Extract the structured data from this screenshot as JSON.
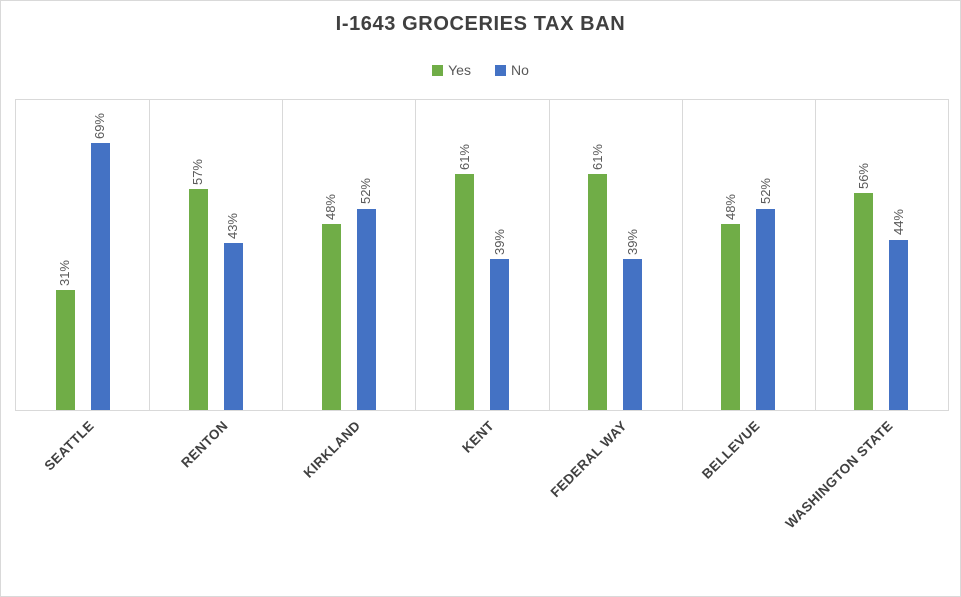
{
  "title": "I-1643 GROCERIES TAX BAN",
  "colors": {
    "yes_green": "#70AD47",
    "no_blue": "#4472C4",
    "gridline_gray": "#D9D9D9",
    "data_label_gray": "#595959",
    "title_gray": "#404040"
  },
  "chart_data": {
    "type": "bar",
    "title": "I-1643 GROCERIES TAX BAN",
    "categories": [
      "SEATTLE",
      "RENTON",
      "KIRKLAND",
      "KENT",
      "FEDERAL WAY",
      "BELLEVUE",
      "WASHINGTON STATE"
    ],
    "series": [
      {
        "name": "Yes",
        "color": "#70AD47",
        "values": [
          31,
          57,
          48,
          61,
          61,
          48,
          56
        ]
      },
      {
        "name": "No",
        "color": "#4472C4",
        "values": [
          69,
          43,
          52,
          39,
          39,
          52,
          44
        ]
      }
    ],
    "xlabel": "",
    "ylabel": "",
    "ylim": [
      0,
      80
    ],
    "y_axis_labels_visible": false,
    "grid": "vertical-category-separators-only",
    "legend_position": "top-center",
    "data_labels": {
      "format": "{value}%",
      "rotation_deg": -90,
      "position": "above-bar"
    },
    "x_tick_label_rotation_deg": -45
  }
}
